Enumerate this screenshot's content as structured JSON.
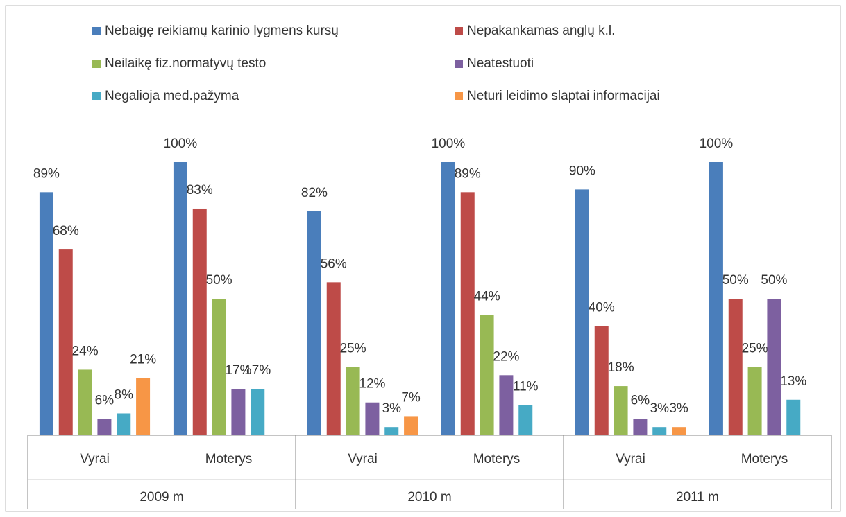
{
  "chart_data": {
    "type": "bar",
    "categories": [
      "Vyrai",
      "Moterys",
      "Vyrai",
      "Moterys",
      "Vyrai",
      "Moterys"
    ],
    "category_groups": [
      "2009 m",
      "2010 m",
      "2011 m"
    ],
    "ylim": [
      0,
      100
    ],
    "legend": "top",
    "series": [
      {
        "name": "Nebaigę reikiamų karinio lygmens kursų",
        "color": "#4a7ebb",
        "values": [
          89,
          100,
          82,
          100,
          90,
          100
        ],
        "value_labels": [
          "89%",
          "100%",
          "82%",
          "100%",
          "90%",
          "100%"
        ]
      },
      {
        "name": "Nepakankamas  anglų k.l.",
        "color": "#be4b48",
        "values": [
          68,
          83,
          56,
          89,
          40,
          50
        ],
        "value_labels": [
          "68%",
          "83%",
          "56%",
          "89%",
          "40%",
          "50%"
        ]
      },
      {
        "name": "Neilaikę fiz.normatyvų testo",
        "color": "#98b954",
        "values": [
          24,
          50,
          25,
          44,
          18,
          25
        ],
        "value_labels": [
          "24%",
          "50%",
          "25%",
          "44%",
          "18%",
          "25%"
        ]
      },
      {
        "name": "Neatestuoti",
        "color": "#7d60a0",
        "values": [
          6,
          17,
          12,
          22,
          6,
          50
        ],
        "value_labels": [
          "6%",
          "17%",
          "12%",
          "22%",
          "6%",
          "50%"
        ]
      },
      {
        "name": "Negalioja med.pažyma",
        "color": "#46aac5",
        "values": [
          8,
          17,
          3,
          11,
          3,
          13
        ],
        "value_labels": [
          "8%",
          "17%",
          "3%",
          "11%",
          "3%",
          "13%"
        ]
      },
      {
        "name": "Neturi leidimo slaptai informacijai",
        "color": "#f79646",
        "values": [
          21,
          null,
          7,
          null,
          3,
          null
        ],
        "value_labels": [
          "21%",
          null,
          "7%",
          null,
          "3%",
          null
        ]
      }
    ]
  }
}
